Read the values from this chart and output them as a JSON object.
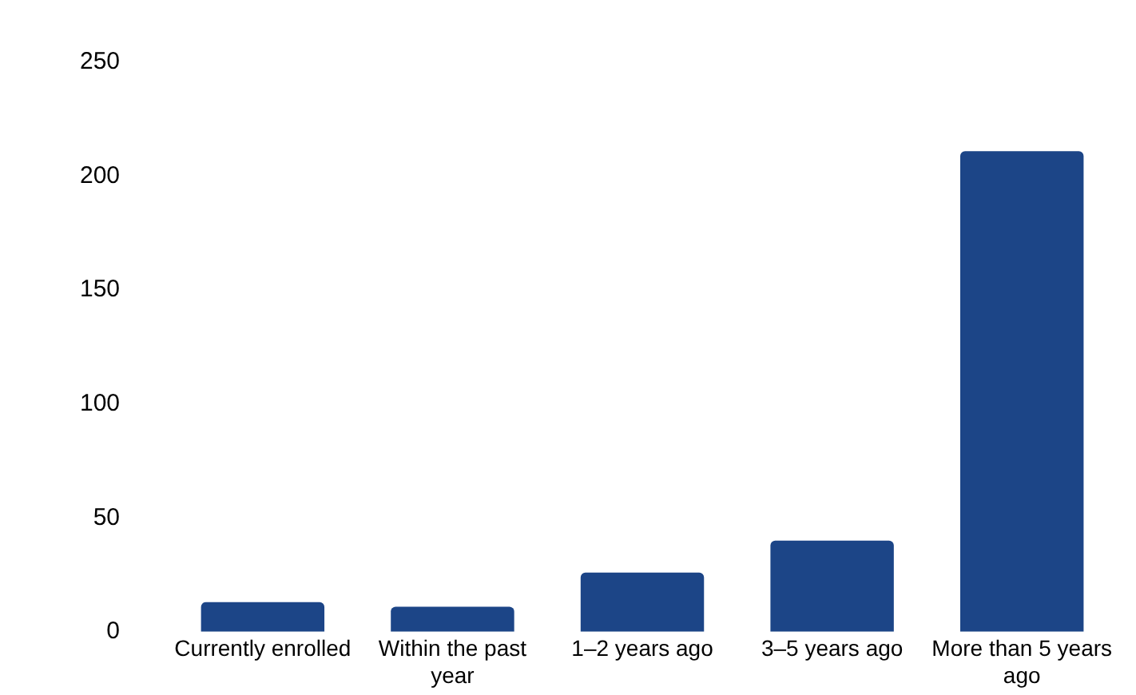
{
  "chart_data": {
    "type": "bar",
    "categories": [
      "Currently enrolled",
      "Within the past year",
      "1–2 years ago",
      "3–5 years ago",
      "More than 5 years ago"
    ],
    "values": [
      13,
      11,
      26,
      40,
      211
    ],
    "color": "#1c4587",
    "ylim": [
      0,
      250
    ],
    "yticks": [
      0,
      50,
      100,
      150,
      200,
      250
    ],
    "grid": false,
    "legend": false
  }
}
